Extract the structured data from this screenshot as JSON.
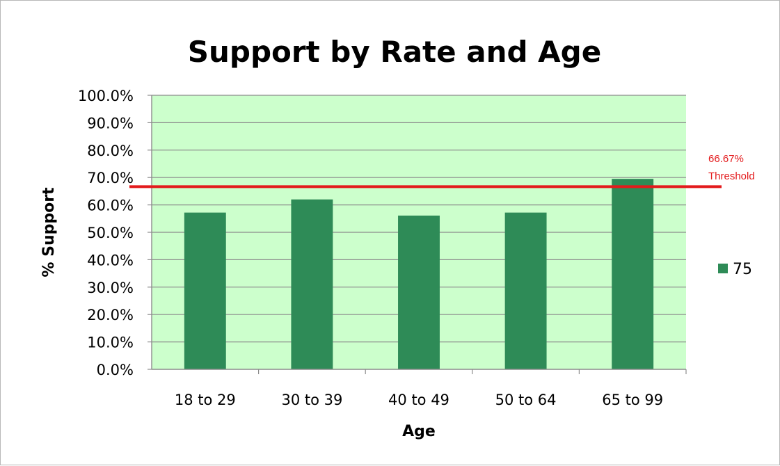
{
  "chart_data": {
    "type": "bar",
    "title": "Support by Rate and Age",
    "xlabel": "Age",
    "ylabel": "% Support",
    "categories": [
      "18 to 29",
      "30 to 39",
      "40 to 49",
      "50 to 64",
      "65 to 99"
    ],
    "series": [
      {
        "name": "75",
        "values": [
          57.2,
          62.0,
          56.1,
          57.2,
          69.5
        ]
      }
    ],
    "ylim": [
      0,
      100
    ],
    "yticks": [
      "0.0%",
      "10.0%",
      "20.0%",
      "30.0%",
      "40.0%",
      "50.0%",
      "60.0%",
      "70.0%",
      "80.0%",
      "90.0%",
      "100.0%"
    ],
    "ytick_values": [
      0,
      10,
      20,
      30,
      40,
      50,
      60,
      70,
      80,
      90,
      100
    ],
    "grid": true,
    "legend_position": "right",
    "threshold": {
      "value": 66.67,
      "label_line1": "66.67%",
      "label_line2": "Threshold",
      "color": "#e31a1c"
    },
    "colors": {
      "bar": "#2e8b57",
      "plot_background": "#ccffcc",
      "gridline": "#8c8c8c",
      "axis": "#8c8c8c",
      "text": "#000000"
    }
  }
}
